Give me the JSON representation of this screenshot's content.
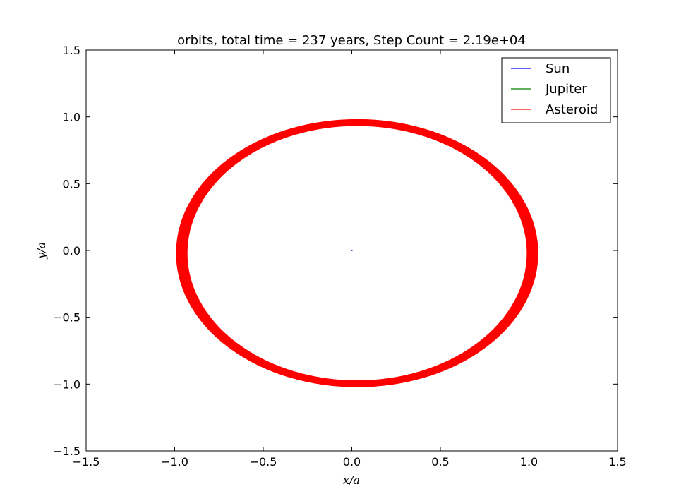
{
  "chart_data": {
    "type": "line",
    "title": "orbits, total time = 237 years, Step Count = 2.19e+04",
    "xlabel": "x/a",
    "ylabel": "y/a",
    "xlim": [
      -1.5,
      1.5
    ],
    "ylim": [
      -1.5,
      1.5
    ],
    "xticks": [
      -1.5,
      -1.0,
      -0.5,
      0.0,
      0.5,
      1.0,
      1.5
    ],
    "yticks": [
      -1.5,
      -1.0,
      -0.5,
      0.0,
      0.5,
      1.0,
      1.5
    ],
    "xtick_labels": [
      "−1.5",
      "−1.0",
      "−0.5",
      "0.0",
      "0.5",
      "1.0",
      "1.5"
    ],
    "ytick_labels": [
      "−1.5",
      "−1.0",
      "−0.5",
      "0.0",
      "0.5",
      "1.0",
      "1.5"
    ],
    "grid": false,
    "legend_position": "top-right",
    "series": [
      {
        "name": "Sun",
        "color": "#0000ff",
        "line_width": 1,
        "orbit": {
          "cx": 0.0,
          "cy": 0.0,
          "rx_min": 0.0,
          "rx_max": 0.004,
          "ry_min": 0.0,
          "ry_max": 0.0
        }
      },
      {
        "name": "Jupiter",
        "color": "#008000",
        "line_width": 1,
        "orbit": {
          "cx": 0.04,
          "cy": -0.02,
          "rx_min": 0.98,
          "rx_max": 1.005,
          "ry_min": 0.985,
          "ry_max": 0.99
        }
      },
      {
        "name": "Asteroid",
        "color": "#ff0000",
        "line_width": 1,
        "orbit": {
          "cx": 0.03,
          "cy": -0.02,
          "rx_min": 0.96,
          "rx_max": 1.02,
          "ry_min": 0.955,
          "ry_max": 1.0
        }
      }
    ]
  }
}
